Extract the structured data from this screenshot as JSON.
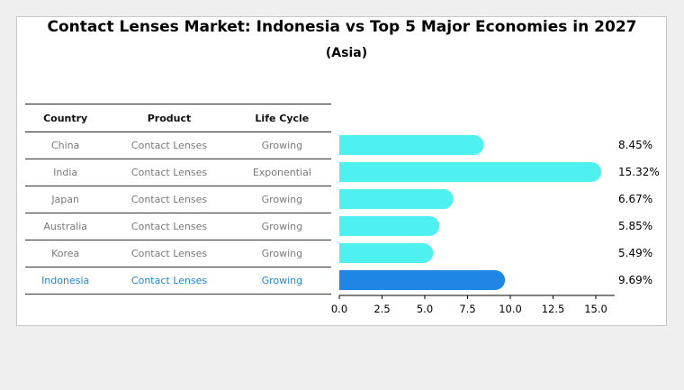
{
  "title": "Contact Lenses Market: Indonesia vs Top 5 Major Economies in 2027",
  "subtitle": "(Asia)",
  "table": {
    "headers": [
      "Country",
      "Product",
      "Life Cycle"
    ],
    "rows": [
      {
        "country": "China",
        "product": "Contact Lenses",
        "life_cycle": "Growing"
      },
      {
        "country": "India",
        "product": "Contact Lenses",
        "life_cycle": "Exponential"
      },
      {
        "country": "Japan",
        "product": "Contact Lenses",
        "life_cycle": "Growing"
      },
      {
        "country": "Australia",
        "product": "Contact Lenses",
        "life_cycle": "Growing"
      },
      {
        "country": "Korea",
        "product": "Contact Lenses",
        "life_cycle": "Growing"
      },
      {
        "country": "Indonesia",
        "product": "Contact Lenses",
        "life_cycle": "Growing"
      }
    ]
  },
  "chart_data": {
    "type": "bar",
    "orientation": "horizontal",
    "categories": [
      "China",
      "India",
      "Japan",
      "Australia",
      "Korea",
      "Indonesia"
    ],
    "values": [
      8.45,
      15.32,
      6.67,
      5.85,
      5.49,
      9.69
    ],
    "value_labels": [
      "8.45%",
      "15.32%",
      "6.67%",
      "5.85%",
      "5.49%",
      "9.69%"
    ],
    "xlim": [
      0,
      16
    ],
    "xticks": [
      "0.0",
      "2.5",
      "5.0",
      "7.5",
      "10.0",
      "12.5",
      "15.0"
    ],
    "xtick_values": [
      0,
      2.5,
      5,
      7.5,
      10,
      12.5,
      15
    ],
    "colors": {
      "default": "#4ff0f0",
      "highlight": "#1f86e6"
    },
    "highlight_category": "Indonesia"
  }
}
